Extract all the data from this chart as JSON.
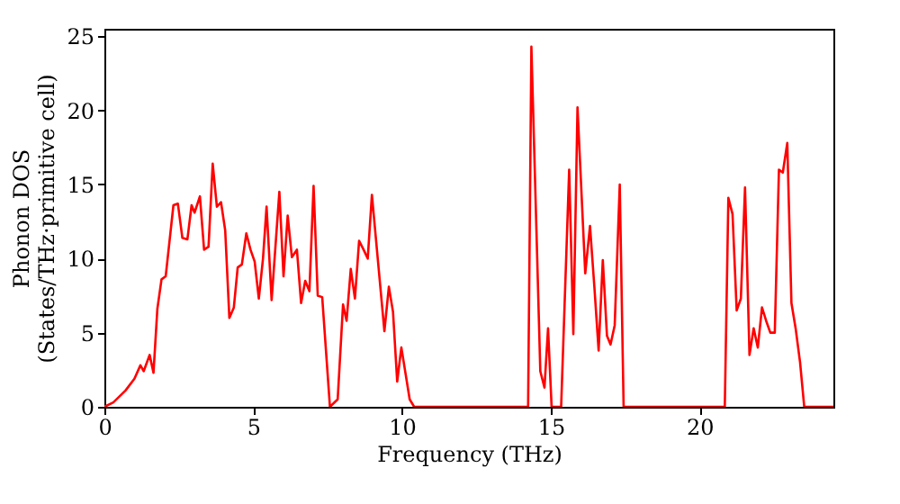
{
  "chart_data": {
    "type": "line",
    "xlabel": "Frequency (THz)",
    "ylabel": "Phonon DOS\n(States/THz·primitive cell)",
    "xlim": [
      0,
      24.5
    ],
    "ylim": [
      0,
      25.5
    ],
    "xticks": [
      0,
      5,
      10,
      15,
      20
    ],
    "yticks": [
      0,
      5,
      10,
      15,
      20,
      25
    ],
    "grid": false,
    "legend": false,
    "marker": "none",
    "line_style": "solid",
    "series": [
      {
        "color": "#ff0000",
        "x": [
          0,
          0.3,
          0.71,
          1.01,
          1.21,
          1.32,
          1.52,
          1.65,
          1.78,
          1.92,
          2.06,
          2.32,
          2.47,
          2.62,
          2.79,
          2.93,
          3.03,
          3.21,
          3.35,
          3.5,
          3.64,
          3.78,
          3.92,
          4.06,
          4.2,
          4.35,
          4.48,
          4.62,
          4.77,
          4.91,
          5.05,
          5.19,
          5.33,
          5.45,
          5.62,
          5.88,
          6.02,
          6.16,
          6.3,
          6.47,
          6.61,
          6.75,
          6.89,
          7.03,
          7.17,
          7.32,
          7.58,
          7.84,
          8.02,
          8.14,
          8.28,
          8.42,
          8.56,
          8.71,
          8.85,
          8.99,
          9.41,
          9.56,
          9.7,
          9.84,
          9.98,
          10.26,
          10.41,
          14.24,
          14.35,
          14.65,
          14.79,
          14.91,
          15.03,
          15.35,
          15.62,
          15.76,
          15.9,
          16.16,
          16.32,
          16.47,
          16.61,
          16.75,
          16.89,
          17.01,
          17.15,
          17.32,
          17.45,
          20.85,
          20.97,
          21.11,
          21.25,
          21.39,
          21.53,
          21.68,
          21.82,
          21.96,
          22.1,
          22.24,
          22.38,
          22.53,
          22.67,
          22.8,
          22.95,
          23.09,
          23.23,
          23.38,
          23.52,
          24.5
        ],
        "values": [
          0,
          0.3,
          1.1,
          1.9,
          2.8,
          2.4,
          3.5,
          2.3,
          6.6,
          8.6,
          8.8,
          13.6,
          13.7,
          11.4,
          11.3,
          13.6,
          13.1,
          14.2,
          10.6,
          10.8,
          16.4,
          13.5,
          13.8,
          11.9,
          6.0,
          6.7,
          9.4,
          9.6,
          11.7,
          10.6,
          9.8,
          7.3,
          10.0,
          13.5,
          7.2,
          14.5,
          8.8,
          12.9,
          10.1,
          10.6,
          7.0,
          8.5,
          7.8,
          14.9,
          7.5,
          7.4,
          0,
          0.5,
          6.9,
          5.8,
          9.3,
          7.3,
          11.2,
          10.6,
          10.0,
          14.3,
          5.1,
          8.1,
          6.4,
          1.7,
          4.0,
          0.5,
          0,
          0,
          24.3,
          2.4,
          1.3,
          5.3,
          0,
          0,
          16,
          4.9,
          20.2,
          9,
          12.2,
          8,
          3.8,
          9.9,
          4.8,
          4.2,
          5.5,
          15,
          0,
          0,
          14.1,
          13,
          6.5,
          7.3,
          14.8,
          3.5,
          5.3,
          4,
          6.7,
          5.8,
          5,
          5,
          16,
          15.8,
          17.8,
          7,
          5.3,
          3,
          0,
          0
        ]
      }
    ]
  }
}
